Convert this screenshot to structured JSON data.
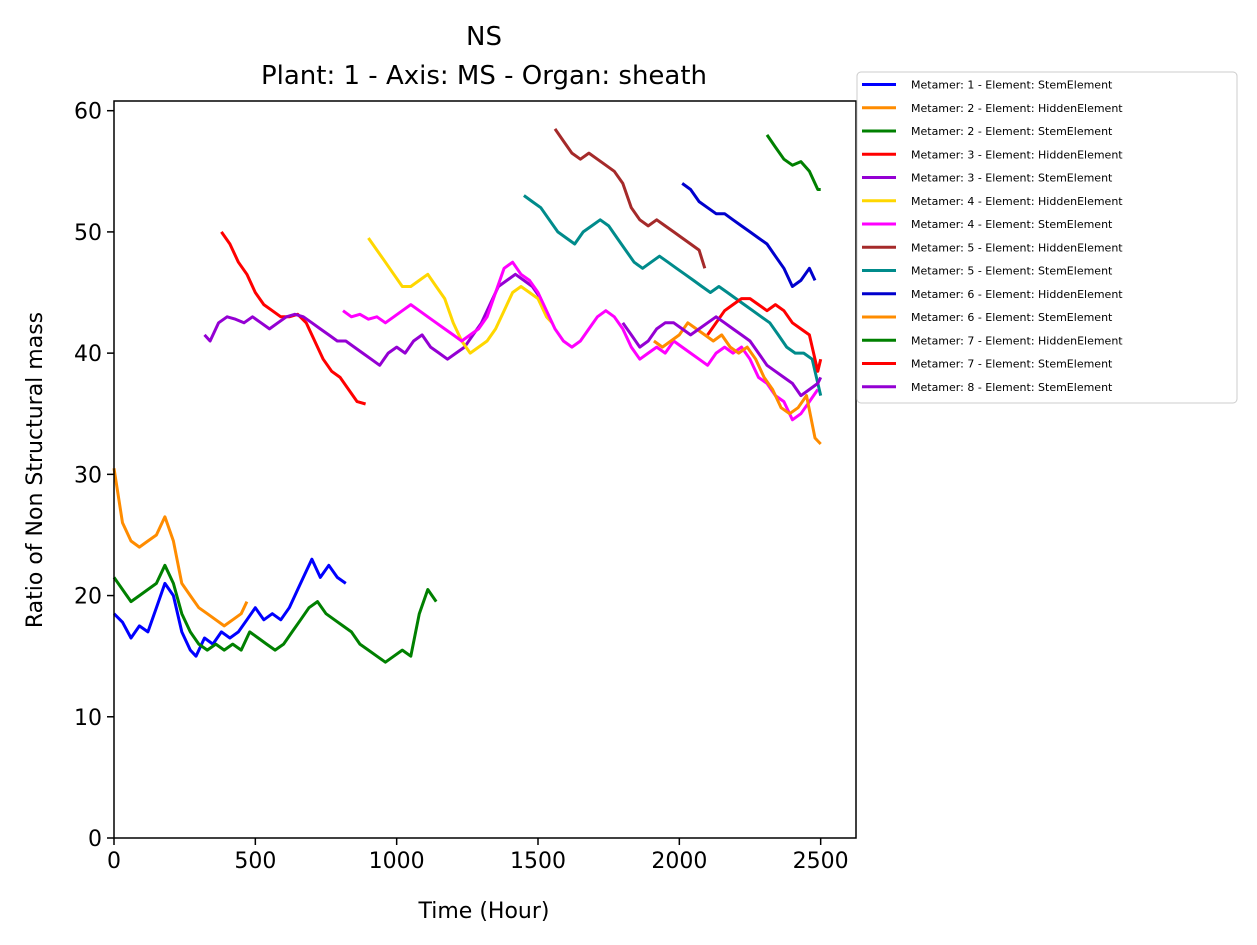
{
  "chart_data": {
    "type": "line",
    "title": "NS",
    "subtitle": "Plant: 1 - Axis: MS - Organ: sheath",
    "xlabel": "Time (Hour)",
    "ylabel": "Ratio of Non Structural mass",
    "xlim": [
      0,
      2625
    ],
    "ylim": [
      0,
      60.8
    ],
    "xticks": [
      0,
      500,
      1000,
      1500,
      2000,
      2500
    ],
    "yticks": [
      0,
      10,
      20,
      30,
      40,
      50,
      60
    ],
    "grid": false,
    "legend_position": "outside-top-right",
    "series": [
      {
        "name": "Metamer: 1 - Element: StemElement",
        "color": "#0000ff",
        "x": [
          0,
          30,
          60,
          90,
          120,
          150,
          180,
          210,
          240,
          270,
          290,
          320,
          350,
          380,
          410,
          440,
          470,
          500,
          530,
          560,
          590,
          620,
          650,
          680,
          700,
          730,
          760,
          790,
          820
        ],
        "y": [
          18.5,
          17.8,
          16.5,
          17.5,
          17.0,
          19.0,
          21.0,
          20.0,
          17.0,
          15.5,
          15.0,
          16.5,
          16.0,
          17.0,
          16.5,
          17.0,
          18.0,
          19.0,
          18.0,
          18.5,
          18.0,
          19.0,
          20.5,
          22.0,
          23.0,
          21.5,
          22.5,
          21.5,
          21.0
        ]
      },
      {
        "name": "Metamer: 2 - Element: HiddenElement",
        "color": "#ff8c00",
        "x": [
          0,
          30,
          60,
          90,
          120,
          150,
          180,
          210,
          240,
          270,
          300,
          330,
          360,
          390,
          420,
          450,
          470
        ],
        "y": [
          30.5,
          26.0,
          24.5,
          24.0,
          24.5,
          25.0,
          26.5,
          24.5,
          21.0,
          20.0,
          19.0,
          18.5,
          18.0,
          17.5,
          18.0,
          18.5,
          19.5
        ]
      },
      {
        "name": "Metamer: 2 - Element: StemElement",
        "color": "#008000",
        "x": [
          0,
          30,
          60,
          90,
          120,
          150,
          180,
          210,
          240,
          270,
          300,
          330,
          360,
          390,
          420,
          450,
          480,
          510,
          540,
          570,
          600,
          630,
          660,
          690,
          720,
          750,
          780,
          810,
          840,
          870,
          900,
          930,
          960,
          990,
          1020,
          1050,
          1080,
          1110,
          1140
        ],
        "y": [
          21.5,
          20.5,
          19.5,
          20.0,
          20.5,
          21.0,
          22.5,
          21.0,
          18.5,
          17.0,
          16.0,
          15.5,
          16.0,
          15.5,
          16.0,
          15.5,
          17.0,
          16.5,
          16.0,
          15.5,
          16.0,
          17.0,
          18.0,
          19.0,
          19.5,
          18.5,
          18.0,
          17.5,
          17.0,
          16.0,
          15.5,
          15.0,
          14.5,
          15.0,
          15.5,
          15.0,
          18.5,
          20.5,
          19.5
        ]
      },
      {
        "name": "Metamer: 3 - Element: HiddenElement",
        "color": "#ff0000",
        "x": [
          380,
          410,
          440,
          470,
          500,
          530,
          560,
          590,
          620,
          650,
          680,
          710,
          740,
          770,
          800,
          830,
          860,
          890
        ],
        "y": [
          50.0,
          49.0,
          47.5,
          46.5,
          45.0,
          44.0,
          43.5,
          43.0,
          43.0,
          43.2,
          42.5,
          41.0,
          39.5,
          38.5,
          38.0,
          37.0,
          36.0,
          35.8
        ]
      },
      {
        "name": "Metamer: 3 - Element: StemElement",
        "color": "#9400d3",
        "x": [
          320,
          340,
          370,
          400,
          430,
          460,
          490,
          520,
          550,
          580,
          610,
          640,
          670,
          700,
          730,
          760,
          790,
          820,
          850,
          880,
          910,
          940,
          970,
          1000,
          1030,
          1060,
          1090,
          1120,
          1150,
          1180,
          1210,
          1240,
          1270,
          1300,
          1330,
          1360,
          1390,
          1420,
          1450,
          1480,
          1510
        ],
        "y": [
          41.5,
          41.0,
          42.5,
          43.0,
          42.8,
          42.5,
          43.0,
          42.5,
          42.0,
          42.5,
          43.0,
          43.2,
          43.0,
          42.5,
          42.0,
          41.5,
          41.0,
          41.0,
          40.5,
          40.0,
          39.5,
          39.0,
          40.0,
          40.5,
          40.0,
          41.0,
          41.5,
          40.5,
          40.0,
          39.5,
          40.0,
          40.5,
          41.5,
          42.5,
          44.0,
          45.5,
          46.0,
          46.5,
          46.0,
          45.5,
          44.5
        ]
      },
      {
        "name": "Metamer: 4 - Element: HiddenElement",
        "color": "#ffd700",
        "x": [
          900,
          930,
          960,
          990,
          1020,
          1050,
          1080,
          1110,
          1140,
          1170,
          1200,
          1230,
          1260,
          1290,
          1320,
          1350,
          1380,
          1410,
          1440,
          1470,
          1500,
          1530,
          1550
        ],
        "y": [
          49.5,
          48.5,
          47.5,
          46.5,
          45.5,
          45.5,
          46.0,
          46.5,
          45.5,
          44.5,
          42.5,
          41.0,
          40.0,
          40.5,
          41.0,
          42.0,
          43.5,
          45.0,
          45.5,
          45.0,
          44.5,
          43.0,
          42.5
        ]
      },
      {
        "name": "Metamer: 4 - Element: StemElement",
        "color": "#ff00ff",
        "x": [
          810,
          840,
          870,
          900,
          930,
          960,
          990,
          1020,
          1050,
          1080,
          1110,
          1140,
          1170,
          1200,
          1230,
          1260,
          1290,
          1320,
          1350,
          1380,
          1410,
          1440,
          1470,
          1500,
          1530,
          1560,
          1590,
          1620,
          1650,
          1680,
          1710,
          1740,
          1770,
          1800,
          1830,
          1860,
          1890,
          1920,
          1950,
          1980,
          2010,
          2040,
          2070,
          2100,
          2130,
          2160,
          2190,
          2220,
          2250,
          2280,
          2310,
          2340,
          2370,
          2400,
          2430,
          2460,
          2490
        ],
        "y": [
          43.5,
          43.0,
          43.2,
          42.8,
          43.0,
          42.5,
          43.0,
          43.5,
          44.0,
          43.5,
          43.0,
          42.5,
          42.0,
          41.5,
          41.0,
          41.5,
          42.0,
          43.0,
          45.0,
          47.0,
          47.5,
          46.5,
          46.0,
          45.0,
          43.5,
          42.0,
          41.0,
          40.5,
          41.0,
          42.0,
          43.0,
          43.5,
          43.0,
          42.0,
          40.5,
          39.5,
          40.0,
          40.5,
          40.0,
          41.0,
          40.5,
          40.0,
          39.5,
          39.0,
          40.0,
          40.5,
          40.0,
          40.5,
          39.5,
          38.0,
          37.5,
          36.5,
          36.0,
          34.5,
          35.0,
          36.0,
          37.0
        ]
      },
      {
        "name": "Metamer: 5 - Element: HiddenElement",
        "color": "#a52a2a",
        "x": [
          1560,
          1590,
          1620,
          1650,
          1680,
          1710,
          1740,
          1770,
          1800,
          1830,
          1860,
          1890,
          1920,
          1950,
          1980,
          2010,
          2040,
          2070,
          2090
        ],
        "y": [
          58.5,
          57.5,
          56.5,
          56.0,
          56.5,
          56.0,
          55.5,
          55.0,
          54.0,
          52.0,
          51.0,
          50.5,
          51.0,
          50.5,
          50.0,
          49.5,
          49.0,
          48.5,
          47.0
        ]
      },
      {
        "name": "Metamer: 5 - Element: StemElement",
        "color": "#008b8b",
        "x": [
          1450,
          1480,
          1510,
          1540,
          1570,
          1600,
          1630,
          1660,
          1690,
          1720,
          1750,
          1780,
          1810,
          1840,
          1870,
          1900,
          1930,
          1960,
          1990,
          2020,
          2050,
          2080,
          2110,
          2140,
          2170,
          2200,
          2230,
          2260,
          2290,
          2320,
          2350,
          2380,
          2410,
          2440,
          2470,
          2500
        ],
        "y": [
          53.0,
          52.5,
          52.0,
          51.0,
          50.0,
          49.5,
          49.0,
          50.0,
          50.5,
          51.0,
          50.5,
          49.5,
          48.5,
          47.5,
          47.0,
          47.5,
          48.0,
          47.5,
          47.0,
          46.5,
          46.0,
          45.5,
          45.0,
          45.5,
          45.0,
          44.5,
          44.0,
          43.5,
          43.0,
          42.5,
          41.5,
          40.5,
          40.0,
          40.0,
          39.5,
          36.5
        ]
      },
      {
        "name": "Metamer: 6 - Element: HiddenElement",
        "color": "#0000cd",
        "x": [
          2010,
          2040,
          2070,
          2100,
          2130,
          2160,
          2190,
          2220,
          2250,
          2280,
          2310,
          2340,
          2370,
          2400,
          2430,
          2460,
          2480
        ],
        "y": [
          54.0,
          53.5,
          52.5,
          52.0,
          51.5,
          51.5,
          51.0,
          50.5,
          50.0,
          49.5,
          49.0,
          48.0,
          47.0,
          45.5,
          46.0,
          47.0,
          46.0
        ]
      },
      {
        "name": "Metamer: 6 - Element: StemElement",
        "color": "#ff8c00",
        "x": [
          1910,
          1940,
          1970,
          2000,
          2030,
          2060,
          2090,
          2120,
          2150,
          2180,
          2210,
          2240,
          2270,
          2300,
          2330,
          2360,
          2390,
          2420,
          2450,
          2480,
          2500
        ],
        "y": [
          41.0,
          40.5,
          41.0,
          41.5,
          42.5,
          42.0,
          41.5,
          41.0,
          41.5,
          40.5,
          40.0,
          40.5,
          39.5,
          38.0,
          37.0,
          35.5,
          35.0,
          35.5,
          36.5,
          33.0,
          32.5
        ]
      },
      {
        "name": "Metamer: 7 - Element: HiddenElement",
        "color": "#008000",
        "x": [
          2310,
          2340,
          2370,
          2400,
          2430,
          2460,
          2490,
          2500
        ],
        "y": [
          58.0,
          57.0,
          56.0,
          55.5,
          55.8,
          55.0,
          53.5,
          53.5
        ]
      },
      {
        "name": "Metamer: 7 - Element: StemElement",
        "color": "#ff0000",
        "x": [
          2100,
          2130,
          2160,
          2190,
          2220,
          2250,
          2280,
          2310,
          2340,
          2370,
          2400,
          2430,
          2460,
          2490,
          2500
        ],
        "y": [
          41.5,
          42.5,
          43.5,
          44.0,
          44.5,
          44.5,
          44.0,
          43.5,
          44.0,
          43.5,
          42.5,
          42.0,
          41.5,
          38.5,
          39.5
        ]
      },
      {
        "name": "Metamer: 8 - Element: StemElement",
        "color": "#9400d3",
        "x": [
          1800,
          1830,
          1860,
          1890,
          1920,
          1950,
          1980,
          2010,
          2040,
          2070,
          2100,
          2130,
          2160,
          2190,
          2220,
          2250,
          2280,
          2310,
          2340,
          2370,
          2400,
          2430,
          2460,
          2490,
          2500
        ],
        "y": [
          42.5,
          41.5,
          40.5,
          41.0,
          42.0,
          42.5,
          42.5,
          42.0,
          41.5,
          42.0,
          42.5,
          43.0,
          42.5,
          42.0,
          41.5,
          41.0,
          40.0,
          39.0,
          38.5,
          38.0,
          37.5,
          36.5,
          37.0,
          37.5,
          38.0
        ]
      }
    ]
  }
}
